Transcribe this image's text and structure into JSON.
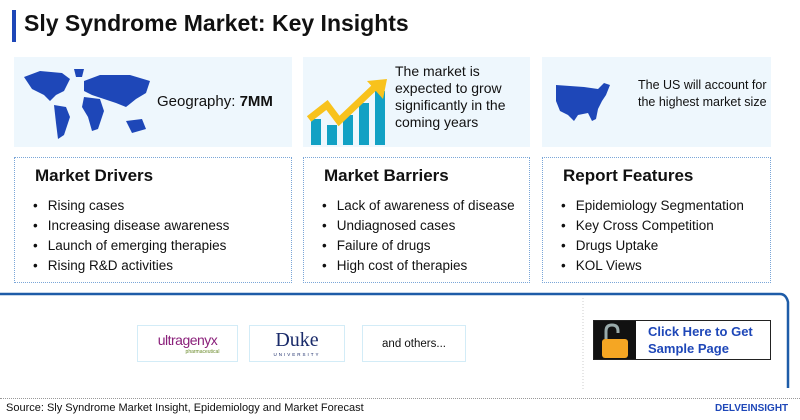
{
  "title": "Sly Syndrome Market: Key Insights",
  "cards": {
    "geography_label": "Geography: ",
    "geography_value": "7MM",
    "growth": "The market is expected to grow significantly in the coming years",
    "us": "The US will account for the highest market size"
  },
  "drivers": {
    "heading": "Market Drivers",
    "items": [
      "Rising cases",
      "Increasing disease awareness",
      "Launch of emerging therapies",
      "Rising R&D activities"
    ]
  },
  "barriers": {
    "heading": "Market Barriers",
    "items": [
      "Lack of awareness of disease",
      "Undiagnosed cases",
      "Failure of drugs",
      "High cost of therapies"
    ]
  },
  "features": {
    "heading": "Report Features",
    "items": [
      "Epidemiology Segmentation",
      "Key Cross Competition",
      "Drugs Uptake",
      "KOL Views"
    ]
  },
  "companies": {
    "ultragenyx": "ultragenyx",
    "ultragenyx_sub": "pharmaceutical",
    "duke": "Duke",
    "duke_sub": "UNIVERSITY",
    "others": "and others..."
  },
  "sample_button": "Click Here to Get Sample Page",
  "source": "Source: Sly Syndrome Market Insight, Epidemiology and Market Forecast",
  "brand": "DELVEINSIGHT",
  "colors": {
    "accent": "#1e47b8",
    "card_bg": "#eef7fd",
    "lock": "#f5a623"
  }
}
